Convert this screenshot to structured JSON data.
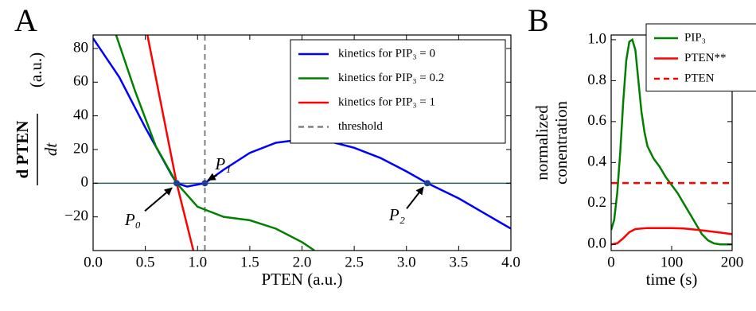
{
  "chart_data": [
    {
      "type": "line",
      "panel": "A",
      "xlabel": "PTEN (a.u.)",
      "ylabel": {
        "numerator": "d PTEN",
        "denominator": "dt",
        "unit": "(a.u.)"
      },
      "xlim": [
        0,
        4
      ],
      "ylim": [
        -40,
        88
      ],
      "xticks": [
        {
          "value": 0,
          "label": "0.0"
        },
        0.5,
        {
          "value": 1,
          "label": "1.0"
        },
        1.5,
        {
          "value": 2,
          "label": "2.0"
        },
        2.5,
        {
          "value": 3,
          "label": "3.0"
        },
        3.5,
        {
          "value": 4,
          "label": "4.0"
        }
      ],
      "yticks": [
        {
          "value": -20,
          "label": "−20"
        },
        0,
        20,
        40,
        60,
        80
      ],
      "series": [
        {
          "name": "kinetics for PIP₃ = 0",
          "color": "#0000ff",
          "x": [
            0,
            0.25,
            0.5,
            0.75,
            0.8,
            0.9,
            1.07,
            1.25,
            1.5,
            1.75,
            2,
            2.25,
            2.5,
            2.75,
            3,
            3.2,
            3.5,
            3.75,
            4
          ],
          "values": [
            86,
            63,
            33,
            5,
            0,
            -2,
            0,
            8,
            18,
            24,
            26,
            25,
            21,
            15,
            7,
            0,
            -9,
            -18,
            -27
          ]
        },
        {
          "name": "kinetics for PIP₃ = 0.2",
          "color": "#008000",
          "x": [
            0.22,
            0.4,
            0.6,
            0.8,
            1.0,
            1.25,
            1.5,
            1.75,
            2.0,
            2.12
          ],
          "values": [
            88,
            55,
            22,
            0,
            -14,
            -20,
            -22,
            -27,
            -35,
            -40
          ]
        },
        {
          "name": "kinetics for PIP₃ = 1",
          "color": "#ff0000",
          "x": [
            0.52,
            0.8,
            0.96
          ],
          "values": [
            88,
            0,
            -40
          ]
        }
      ],
      "vlines": [
        {
          "name": "threshold",
          "x": 1.07,
          "color": "#808080",
          "dash": true
        }
      ],
      "hline": {
        "value": 0,
        "color": "#2f5f5f"
      },
      "points": [
        {
          "label": "P₀",
          "x": 0.8,
          "y": 0
        },
        {
          "label": "P₁",
          "x": 1.07,
          "y": 0
        },
        {
          "label": "P₂",
          "x": 3.2,
          "y": 0
        }
      ],
      "point_color": "#1f3f8f",
      "legend": "upper right"
    },
    {
      "type": "line",
      "panel": "B",
      "xlabel": "time (s)",
      "ylabel": [
        "normalized",
        "conentration"
      ],
      "xlim": [
        0,
        200
      ],
      "ylim": [
        -0.03,
        1.023
      ],
      "xticks": [
        0,
        100,
        200
      ],
      "yticks": [
        {
          "value": 0,
          "label": "0.0"
        },
        0.2,
        0.4,
        0.6,
        0.8,
        {
          "value": 1,
          "label": "1.0"
        }
      ],
      "series": [
        {
          "name": "PIP₃",
          "color": "#008000",
          "x": [
            0,
            5,
            10,
            15,
            20,
            25,
            30,
            35,
            40,
            45,
            50,
            55,
            60,
            70,
            80,
            90,
            100,
            110,
            120,
            130,
            140,
            150,
            160,
            170,
            180,
            200
          ],
          "values": [
            0.07,
            0.12,
            0.25,
            0.45,
            0.7,
            0.9,
            0.99,
            1.0,
            0.95,
            0.8,
            0.65,
            0.55,
            0.48,
            0.42,
            0.38,
            0.33,
            0.29,
            0.25,
            0.2,
            0.15,
            0.1,
            0.05,
            0.02,
            0.005,
            0,
            0
          ]
        },
        {
          "name": "PTEN**",
          "color": "#ff0000",
          "x": [
            0,
            10,
            20,
            30,
            40,
            60,
            80,
            100,
            120,
            140,
            160,
            180,
            200
          ],
          "values": [
            0,
            0.005,
            0.03,
            0.06,
            0.075,
            0.08,
            0.08,
            0.08,
            0.078,
            0.072,
            0.065,
            0.058,
            0.05
          ]
        },
        {
          "name": "PTEN",
          "color": "#ff0000",
          "dash": true,
          "x": [
            0,
            200
          ],
          "values": [
            0.3,
            0.3
          ]
        }
      ],
      "legend": "upper right"
    }
  ]
}
